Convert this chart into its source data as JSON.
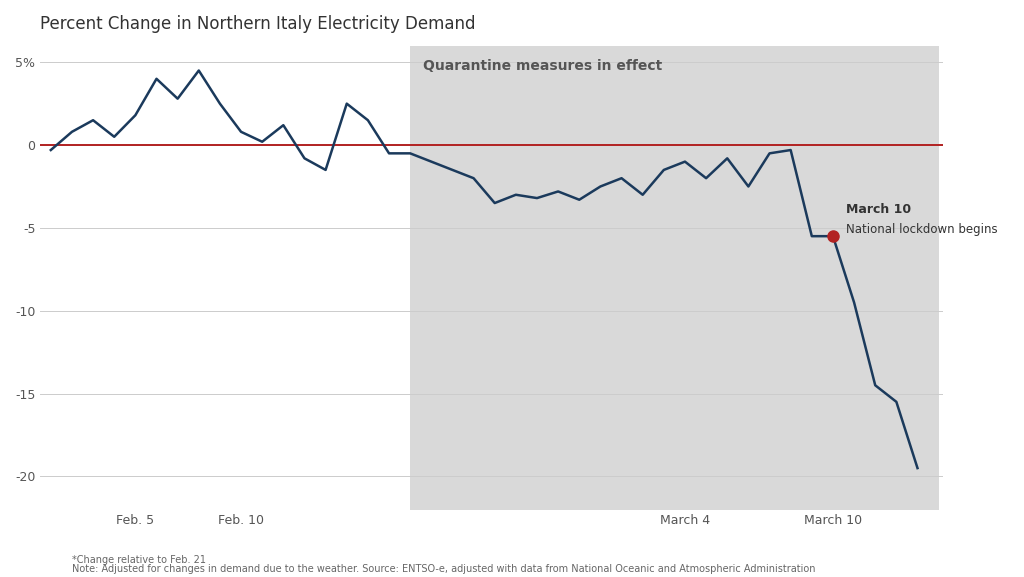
{
  "title": "Percent Change in Northern Italy Electricity Demand",
  "footnote1": "*Change relative to Feb. 21",
  "footnote2": "Note: Adjusted for changes in demand due to the weather. Source: ENTSO-e, adjusted with data from National Oceanic and Atmospheric Administration",
  "quarantine_label": "Quarantine measures in effect",
  "lockdown_label1": "March 10",
  "lockdown_label2": "National lockdown begins",
  "line_color": "#1b3a5c",
  "zero_line_color": "#b22222",
  "shading_color": "#d9d9d9",
  "background_color": "#ffffff",
  "ytick_labels": [
    "5%",
    "0",
    "-5",
    "-10",
    "-15",
    "-20"
  ],
  "yticks": [
    5,
    0,
    -5,
    -10,
    -15,
    -20
  ],
  "ylim": [
    -22,
    6
  ],
  "quarantine_start_x": 17,
  "lockdown_x": 37,
  "lockdown_y": -5.5,
  "data_x": [
    0,
    1,
    2,
    3,
    4,
    5,
    6,
    7,
    8,
    9,
    10,
    11,
    12,
    13,
    14,
    15,
    16,
    17,
    18,
    19,
    20,
    21,
    22,
    23,
    24,
    25,
    26,
    27,
    28,
    29,
    30,
    31,
    32,
    33,
    34,
    35,
    36,
    37,
    38,
    39,
    40,
    41
  ],
  "data_y": [
    -0.3,
    0.8,
    1.5,
    0.5,
    1.8,
    4.0,
    2.8,
    4.5,
    2.5,
    0.8,
    0.2,
    1.2,
    -0.8,
    -1.5,
    2.5,
    1.5,
    -0.5,
    -0.5,
    -1.0,
    -1.5,
    -2.0,
    -3.5,
    -3.0,
    -3.2,
    -2.8,
    -3.3,
    -2.5,
    -2.0,
    -3.0,
    -1.5,
    -1.0,
    -2.0,
    -0.8,
    -2.5,
    -0.5,
    -0.3,
    -5.5,
    -5.5,
    -9.5,
    -14.5,
    -15.5,
    -19.5
  ],
  "x_tick_positions": [
    4,
    9,
    30,
    37
  ],
  "x_tick_labels": [
    "Feb. 5",
    "Feb. 10",
    "March 4",
    "March 10"
  ]
}
